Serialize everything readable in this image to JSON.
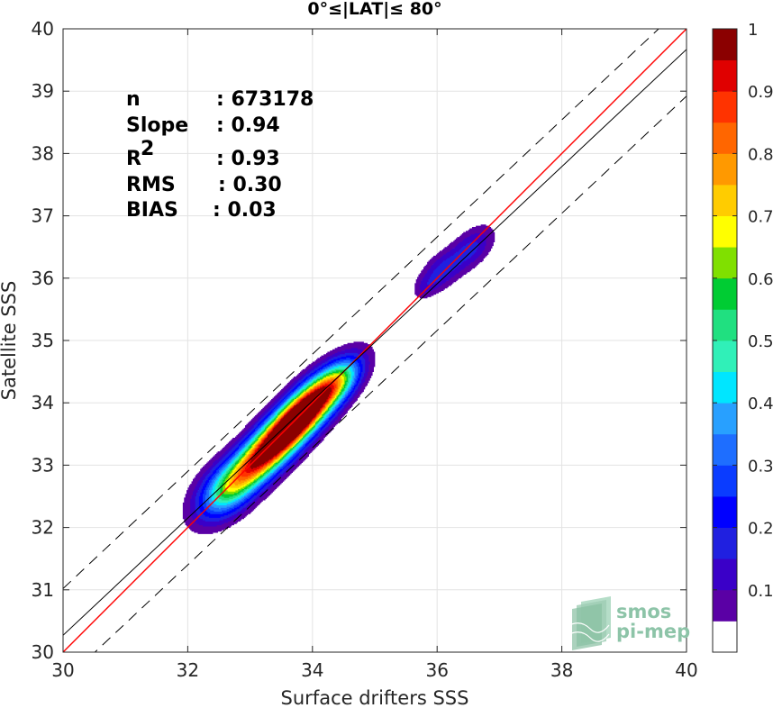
{
  "chart_data": {
    "type": "heatmap",
    "title": "0°≤|LAT|≤ 80°",
    "xlabel": "Surface drifters SSS",
    "ylabel": "Satellite SSS",
    "xlim": [
      30,
      40
    ],
    "ylim": [
      30,
      40
    ],
    "xticks": [
      "30",
      "32",
      "34",
      "36",
      "38",
      "40"
    ],
    "yticks": [
      "30",
      "31",
      "32",
      "33",
      "34",
      "35",
      "36",
      "37",
      "38",
      "39",
      "40"
    ],
    "grid": true,
    "stats": [
      {
        "name": "n",
        "sup": "",
        "value": ": 673178"
      },
      {
        "name": "Slope",
        "sup": "",
        "value": ": 0.94"
      },
      {
        "name": "R",
        "sup": "2",
        "value": ": 0.93"
      },
      {
        "name": "RMS",
        "sup": "",
        "value": ": 0.30"
      },
      {
        "name": "BIAS",
        "sup": "",
        "value": ": 0.03"
      }
    ],
    "reference_lines": [
      {
        "kind": "identity",
        "color": "#ff0000",
        "style": "solid",
        "points": [
          [
            30,
            30
          ],
          [
            40,
            40
          ]
        ]
      },
      {
        "kind": "fit",
        "color": "#000000",
        "style": "solid",
        "points": [
          [
            30,
            30.27
          ],
          [
            40,
            39.67
          ]
        ]
      },
      {
        "kind": "fit-plus",
        "color": "#000000",
        "style": "dashed",
        "points": [
          [
            30,
            31.02
          ],
          [
            40,
            40.42
          ]
        ]
      },
      {
        "kind": "fit-minus",
        "color": "#000000",
        "style": "dashed",
        "points": [
          [
            30,
            29.52
          ],
          [
            40,
            38.92
          ]
        ]
      }
    ],
    "density_peaks": [
      {
        "x": 33.3,
        "y": 33.25,
        "level": 1.0
      },
      {
        "x": 34.0,
        "y": 34.0,
        "level": 0.95
      },
      {
        "x": 36.0,
        "y": 36.1,
        "level": 0.15
      },
      {
        "x": 36.6,
        "y": 36.5,
        "level": 0.15
      }
    ],
    "colorbar": {
      "ticks": [
        "0.1",
        "0.2",
        "0.3",
        "0.4",
        "0.5",
        "0.6",
        "0.7",
        "0.8",
        "0.9",
        "1"
      ],
      "levels": [
        0,
        0.05,
        0.1,
        0.15,
        0.2,
        0.25,
        0.3,
        0.35,
        0.4,
        0.45,
        0.5,
        0.55,
        0.6,
        0.65,
        0.7,
        0.75,
        0.8,
        0.85,
        0.9,
        0.95,
        1.0
      ],
      "colors": [
        "#ffffff",
        "#5a00a5",
        "#3a00c8",
        "#2020e0",
        "#0000ff",
        "#0a3cff",
        "#1e6eff",
        "#28a0ff",
        "#00e6ff",
        "#30f0b8",
        "#20e080",
        "#00cc33",
        "#80e000",
        "#ffff00",
        "#ffcc00",
        "#ff9900",
        "#ff6600",
        "#ff3300",
        "#e00000",
        "#8b0000"
      ]
    }
  },
  "watermark": {
    "line1": "smos",
    "line2": "pi-mep",
    "color": "#8dc4a8"
  }
}
